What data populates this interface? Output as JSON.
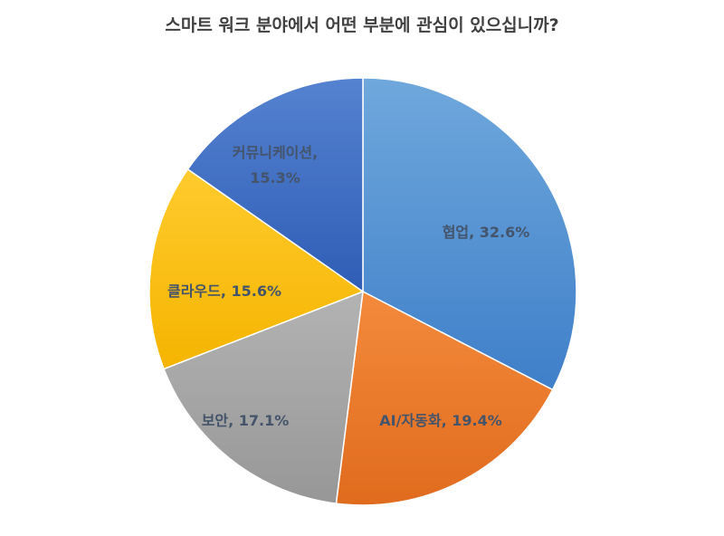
{
  "chart_data": {
    "type": "pie",
    "title": "스마트 워크 분야에서 어떤 부분에 관심이 있으십니까?",
    "start_angle_deg": 0,
    "direction": "clockwise",
    "slices": [
      {
        "name": "협업",
        "value": 32.6,
        "label": "협업, 32.6%",
        "color": "#5b9bd5"
      },
      {
        "name": "AI/자동화",
        "value": 19.4,
        "label": "AI/자동화, 19.4%",
        "color": "#ed7d31"
      },
      {
        "name": "보안",
        "value": 17.1,
        "label": "보안, 17.1%",
        "color": "#a5a5a5"
      },
      {
        "name": "클라우드",
        "value": 15.6,
        "label": "클라우드, 15.6%",
        "color": "#ffc000"
      },
      {
        "name": "커뮤니케이션",
        "value": 15.3,
        "label_lines": [
          "커뮤니케이션,",
          "15.3%"
        ],
        "color": "#4472c4"
      }
    ]
  }
}
